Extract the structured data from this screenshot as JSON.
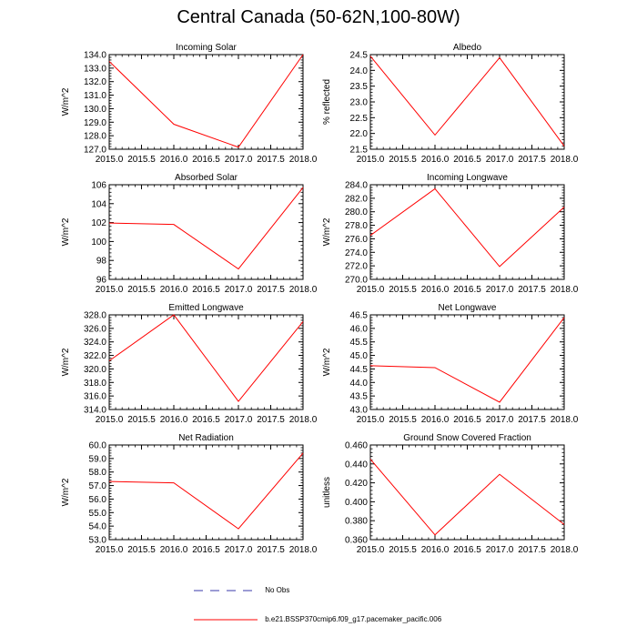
{
  "title": "Central Canada (50-62N,100-80W)",
  "colors": {
    "model": "#ff0000",
    "obs": "#3a3aa8",
    "axis": "#000000"
  },
  "legend": {
    "obs_label": "No Obs",
    "model_label": "b.e21.BSSP370cmip6.f09_g17.pacemaker_pacific.006"
  },
  "chart_data": [
    {
      "type": "line",
      "title": "Incoming Solar",
      "ylabel": "W/m^2",
      "x": [
        2015,
        2016,
        2017,
        2018
      ],
      "series": [
        {
          "name": "b.e21.BSSP370cmip6.f09_g17.pacemaker_pacific.006",
          "values": [
            133.5,
            128.85,
            127.15,
            134.0
          ]
        }
      ],
      "xlim": [
        2015,
        2018
      ],
      "xticks": [
        "2015.0",
        "2015.5",
        "2016.0",
        "2016.5",
        "2017.0",
        "2017.5",
        "2018.0"
      ],
      "ylim": [
        127.0,
        134.0
      ],
      "yticks": [
        "127.0",
        "128.0",
        "129.0",
        "130.0",
        "131.0",
        "132.0",
        "133.0",
        "134.0"
      ]
    },
    {
      "type": "line",
      "title": "Albedo",
      "ylabel": "% reflected",
      "x": [
        2015,
        2016,
        2017,
        2018
      ],
      "series": [
        {
          "name": "b.e21.BSSP370cmip6.f09_g17.pacemaker_pacific.006",
          "values": [
            24.45,
            21.95,
            24.4,
            21.6
          ]
        }
      ],
      "xlim": [
        2015,
        2018
      ],
      "xticks": [
        "2015.0",
        "2015.5",
        "2016.0",
        "2016.5",
        "2017.0",
        "2017.5",
        "2018.0"
      ],
      "ylim": [
        21.5,
        24.5
      ],
      "yticks": [
        "21.5",
        "22.0",
        "22.5",
        "23.0",
        "23.5",
        "24.0",
        "24.5"
      ]
    },
    {
      "type": "line",
      "title": "Absorbed Solar",
      "ylabel": "W/m^2",
      "x": [
        2015,
        2016,
        2017,
        2018
      ],
      "series": [
        {
          "name": "b.e21.BSSP370cmip6.f09_g17.pacemaker_pacific.006",
          "values": [
            101.95,
            101.8,
            97.1,
            105.7
          ]
        }
      ],
      "xlim": [
        2015,
        2018
      ],
      "xticks": [
        "2015.0",
        "2015.5",
        "2016.0",
        "2016.5",
        "2017.0",
        "2017.5",
        "2018.0"
      ],
      "ylim": [
        96,
        106
      ],
      "yticks": [
        "96",
        "98",
        "100",
        "102",
        "104",
        "106"
      ]
    },
    {
      "type": "line",
      "title": "Incoming Longwave",
      "ylabel": "W/m^2",
      "x": [
        2015,
        2016,
        2017,
        2018
      ],
      "series": [
        {
          "name": "b.e21.BSSP370cmip6.f09_g17.pacemaker_pacific.006",
          "values": [
            276.5,
            283.4,
            271.9,
            280.7
          ]
        }
      ],
      "xlim": [
        2015,
        2018
      ],
      "xticks": [
        "2015.0",
        "2015.5",
        "2016.0",
        "2016.5",
        "2017.0",
        "2017.5",
        "2018.0"
      ],
      "ylim": [
        270.0,
        284.0
      ],
      "yticks": [
        "270.0",
        "272.0",
        "274.0",
        "276.0",
        "278.0",
        "280.0",
        "282.0",
        "284.0"
      ]
    },
    {
      "type": "line",
      "title": "Emitted Longwave",
      "ylabel": "W/m^2",
      "x": [
        2015,
        2016,
        2017,
        2018
      ],
      "series": [
        {
          "name": "b.e21.BSSP370cmip6.f09_g17.pacemaker_pacific.006",
          "values": [
            321.2,
            328.0,
            315.2,
            327.0
          ]
        }
      ],
      "xlim": [
        2015,
        2018
      ],
      "xticks": [
        "2015.0",
        "2015.5",
        "2016.0",
        "2016.5",
        "2017.0",
        "2017.5",
        "2018.0"
      ],
      "ylim": [
        314.0,
        328.0
      ],
      "yticks": [
        "314.0",
        "316.0",
        "318.0",
        "320.0",
        "322.0",
        "324.0",
        "326.0",
        "328.0"
      ]
    },
    {
      "type": "line",
      "title": "Net Longwave",
      "ylabel": "W/m^2",
      "x": [
        2015,
        2016,
        2017,
        2018
      ],
      "series": [
        {
          "name": "b.e21.BSSP370cmip6.f09_g17.pacemaker_pacific.006",
          "values": [
            44.62,
            44.55,
            43.27,
            46.4
          ]
        }
      ],
      "xlim": [
        2015,
        2018
      ],
      "xticks": [
        "2015.0",
        "2015.5",
        "2016.0",
        "2016.5",
        "2017.0",
        "2017.5",
        "2018.0"
      ],
      "ylim": [
        43.0,
        46.5
      ],
      "yticks": [
        "43.0",
        "43.5",
        "44.0",
        "44.5",
        "45.0",
        "45.5",
        "46.0",
        "46.5"
      ]
    },
    {
      "type": "line",
      "title": "Net Radiation",
      "ylabel": "W/m^2",
      "x": [
        2015,
        2016,
        2017,
        2018
      ],
      "series": [
        {
          "name": "b.e21.BSSP370cmip6.f09_g17.pacemaker_pacific.006",
          "values": [
            57.3,
            57.2,
            53.8,
            59.4
          ]
        }
      ],
      "xlim": [
        2015,
        2018
      ],
      "xticks": [
        "2015.0",
        "2015.5",
        "2016.0",
        "2016.5",
        "2017.0",
        "2017.5",
        "2018.0"
      ],
      "ylim": [
        53.0,
        60.0
      ],
      "yticks": [
        "53.0",
        "54.0",
        "55.0",
        "56.0",
        "57.0",
        "58.0",
        "59.0",
        "60.0"
      ]
    },
    {
      "type": "line",
      "title": "Ground Snow Covered Fraction",
      "ylabel": "unitless",
      "x": [
        2015,
        2016,
        2017,
        2018
      ],
      "series": [
        {
          "name": "b.e21.BSSP370cmip6.f09_g17.pacemaker_pacific.006",
          "values": [
            0.445,
            0.365,
            0.429,
            0.376
          ]
        }
      ],
      "xlim": [
        2015,
        2018
      ],
      "xticks": [
        "2015.0",
        "2015.5",
        "2016.0",
        "2016.5",
        "2017.0",
        "2017.5",
        "2018.0"
      ],
      "ylim": [
        0.36,
        0.46
      ],
      "yticks": [
        "0.360",
        "0.380",
        "0.400",
        "0.420",
        "0.440",
        "0.460"
      ]
    }
  ]
}
